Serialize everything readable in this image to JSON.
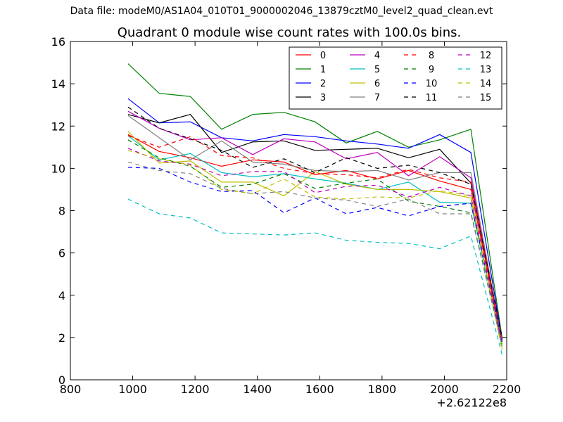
{
  "header": {
    "data_file": "Data file: modeM0/AS1A04_010T01_9000002046_13879cztM0_level2_quad_clean.evt"
  },
  "chart_data": {
    "type": "line",
    "title": "Quadrant 0 module wise count rates with 100.0s bins.",
    "xlabel": "",
    "ylabel": "",
    "xlim": [
      800,
      2200
    ],
    "ylim": [
      0,
      16
    ],
    "x_offset_label": "+2.62122e8",
    "xticks": [
      800,
      1000,
      1200,
      1400,
      1600,
      1800,
      2000,
      2200
    ],
    "yticks": [
      0,
      2,
      4,
      6,
      8,
      10,
      12,
      14,
      16
    ],
    "legend_position": "top-right",
    "legend_columns": 4,
    "x": [
      985,
      1085,
      1185,
      1285,
      1385,
      1485,
      1585,
      1685,
      1785,
      1885,
      1985,
      2085,
      2185
    ],
    "series": [
      {
        "name": "0",
        "color": "#ff0000",
        "dash": "solid",
        "values": [
          11.6,
          10.8,
          10.5,
          10.1,
          10.4,
          10.3,
          9.7,
          9.9,
          9.5,
          9.9,
          9.4,
          9.0,
          1.8
        ]
      },
      {
        "name": "1",
        "color": "#008000",
        "dash": "solid",
        "values": [
          14.95,
          13.55,
          13.4,
          11.85,
          12.55,
          12.65,
          12.2,
          11.2,
          11.75,
          11.0,
          11.35,
          11.85,
          2.0
        ]
      },
      {
        "name": "2",
        "color": "#0000ff",
        "dash": "solid",
        "values": [
          13.3,
          12.15,
          12.2,
          11.45,
          11.3,
          11.6,
          11.5,
          11.3,
          11.15,
          10.95,
          11.6,
          10.75,
          1.9
        ]
      },
      {
        "name": "3",
        "color": "#000000",
        "dash": "solid",
        "values": [
          12.55,
          12.15,
          12.55,
          10.75,
          11.25,
          11.3,
          10.85,
          10.9,
          10.95,
          10.5,
          10.9,
          9.3,
          1.9
        ]
      },
      {
        "name": "4",
        "color": "#bf00bf",
        "dash": "solid",
        "values": [
          12.7,
          11.9,
          11.35,
          11.45,
          10.65,
          11.4,
          11.25,
          10.45,
          10.75,
          9.65,
          10.55,
          9.55,
          1.8
        ]
      },
      {
        "name": "5",
        "color": "#00bfbf",
        "dash": "solid",
        "values": [
          11.55,
          10.4,
          10.7,
          9.8,
          9.6,
          9.75,
          9.5,
          9.3,
          9.0,
          9.35,
          8.4,
          8.35,
          1.6
        ]
      },
      {
        "name": "6",
        "color": "#bfbf00",
        "dash": "solid",
        "values": [
          11.75,
          10.25,
          10.35,
          9.35,
          9.35,
          8.7,
          9.85,
          9.25,
          9.0,
          9.0,
          8.9,
          8.6,
          1.5
        ]
      },
      {
        "name": "7",
        "color": "#808080",
        "dash": "solid",
        "values": [
          12.5,
          11.45,
          10.4,
          11.3,
          10.3,
          10.2,
          9.9,
          9.85,
          9.9,
          9.45,
          9.8,
          9.8,
          1.8
        ]
      },
      {
        "name": "8",
        "color": "#ff0000",
        "dash": "dashed",
        "values": [
          11.55,
          11.0,
          11.5,
          10.6,
          10.5,
          10.0,
          9.75,
          9.7,
          9.55,
          9.95,
          9.55,
          9.35,
          1.9
        ]
      },
      {
        "name": "9",
        "color": "#008000",
        "dash": "dashed",
        "values": [
          11.35,
          10.5,
          10.1,
          9.1,
          9.25,
          9.75,
          9.05,
          9.3,
          9.5,
          8.45,
          8.2,
          7.9,
          1.7
        ]
      },
      {
        "name": "10",
        "color": "#0000ff",
        "dash": "dashed",
        "values": [
          10.05,
          10.0,
          9.35,
          8.9,
          8.95,
          7.9,
          8.6,
          7.85,
          8.15,
          7.75,
          8.2,
          8.35,
          1.8
        ]
      },
      {
        "name": "11",
        "color": "#000000",
        "dash": "dashed",
        "values": [
          12.9,
          11.9,
          11.4,
          10.85,
          10.05,
          10.45,
          9.8,
          10.5,
          10.0,
          10.15,
          9.8,
          9.25,
          2.0
        ]
      },
      {
        "name": "12",
        "color": "#bf00bf",
        "dash": "dashed",
        "values": [
          10.95,
          10.35,
          10.2,
          9.65,
          9.85,
          9.85,
          8.85,
          9.15,
          9.2,
          8.65,
          9.1,
          8.7,
          1.7
        ]
      },
      {
        "name": "13",
        "color": "#00bfbf",
        "dash": "dashed",
        "values": [
          8.55,
          7.85,
          7.65,
          6.95,
          6.9,
          6.85,
          6.95,
          6.6,
          6.5,
          6.45,
          6.2,
          6.8,
          1.2
        ]
      },
      {
        "name": "14",
        "color": "#bfbf00",
        "dash": "dashed",
        "values": [
          10.85,
          10.45,
          10.15,
          9.0,
          8.8,
          9.5,
          8.65,
          8.55,
          8.65,
          8.6,
          8.95,
          8.7,
          1.4
        ]
      },
      {
        "name": "15",
        "color": "#808080",
        "dash": "dashed",
        "values": [
          10.3,
          9.9,
          9.75,
          9.05,
          8.8,
          8.9,
          8.6,
          8.5,
          8.2,
          8.55,
          7.85,
          7.85,
          1.6
        ]
      }
    ]
  }
}
